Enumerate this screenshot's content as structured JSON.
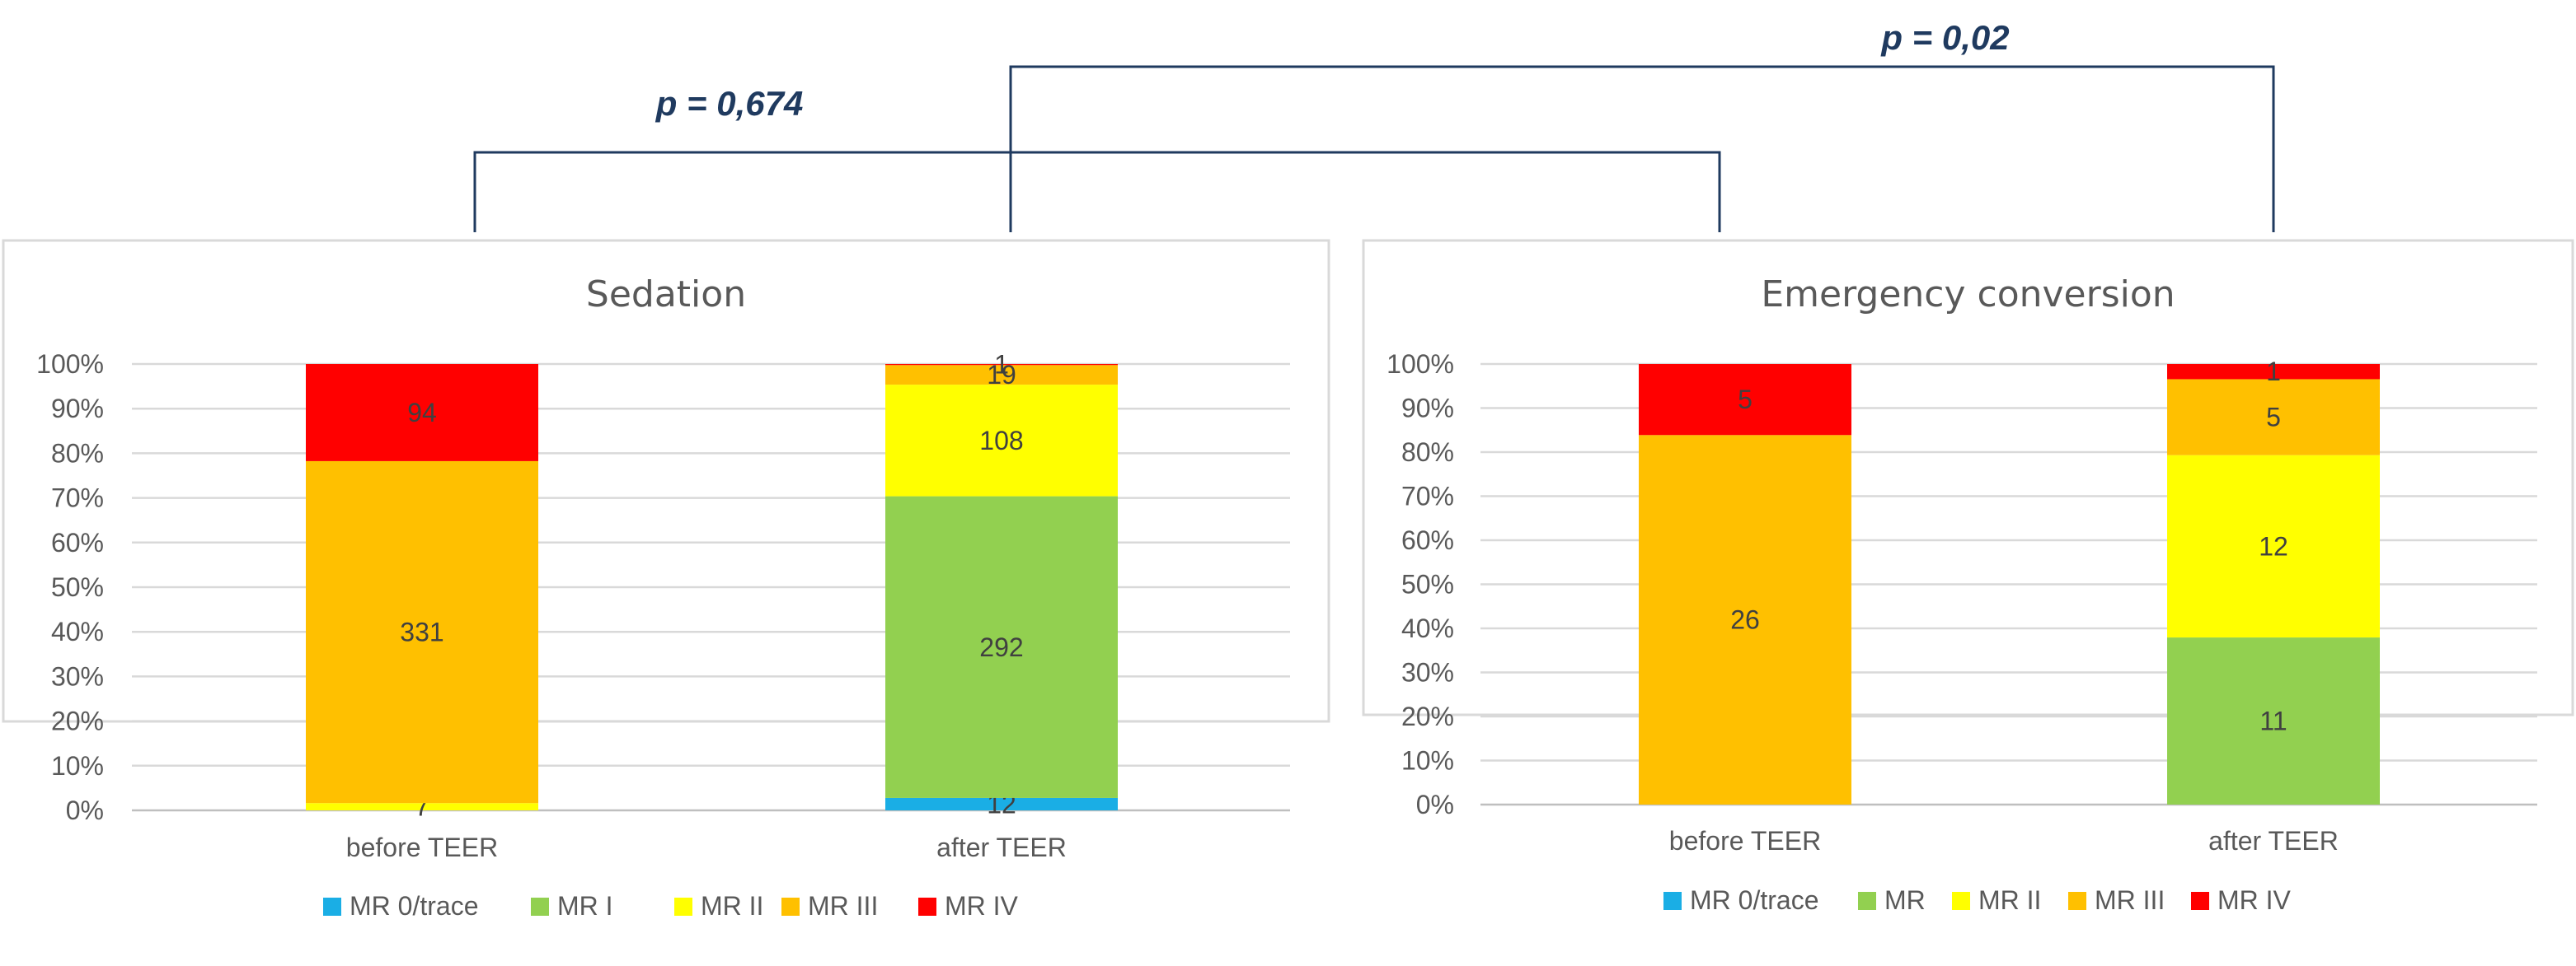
{
  "comparisons": [
    {
      "label": "p = 0,674",
      "from": "Sedation/before TEER",
      "to": "Emergency conversion/before TEER"
    },
    {
      "label": "p = 0,02",
      "from": "Sedation/after TEER",
      "to": "Emergency conversion/after TEER"
    }
  ],
  "bracket_color": "#1f3a5f",
  "chart_data": [
    {
      "type": "bar",
      "stacked": "percent",
      "title": "Sedation",
      "categories": [
        "before TEER",
        "after TEER"
      ],
      "y_ticks": [
        "0%",
        "10%",
        "20%",
        "30%",
        "40%",
        "50%",
        "60%",
        "70%",
        "80%",
        "90%",
        "100%"
      ],
      "ylim": [
        0,
        100
      ],
      "grid": true,
      "legend_position": "bottom",
      "series": [
        {
          "name": "MR 0/trace",
          "color": "#1aaee5",
          "values": [
            0,
            12
          ]
        },
        {
          "name": "MR I",
          "color": "#92d050",
          "values": [
            0,
            292
          ]
        },
        {
          "name": "MR II",
          "color": "#ffff00",
          "values": [
            7,
            108
          ]
        },
        {
          "name": "MR III",
          "color": "#ffc000",
          "values": [
            331,
            19
          ]
        },
        {
          "name": "MR IV",
          "color": "#ff0000",
          "values": [
            94,
            1
          ]
        }
      ]
    },
    {
      "type": "bar",
      "stacked": "percent",
      "title": "Emergency conversion",
      "categories": [
        "before TEER",
        "after TEER"
      ],
      "y_ticks": [
        "0%",
        "10%",
        "20%",
        "30%",
        "40%",
        "50%",
        "60%",
        "70%",
        "80%",
        "90%",
        "100%"
      ],
      "ylim": [
        0,
        100
      ],
      "grid": true,
      "legend_position": "bottom",
      "series": [
        {
          "name": "MR 0/trace",
          "color": "#1aaee5",
          "values": [
            0,
            0
          ]
        },
        {
          "name": "MR",
          "color": "#92d050",
          "values": [
            0,
            11
          ]
        },
        {
          "name": "MR II",
          "color": "#ffff00",
          "values": [
            0,
            12
          ]
        },
        {
          "name": "MR III",
          "color": "#ffc000",
          "values": [
            26,
            5
          ]
        },
        {
          "name": "MR IV",
          "color": "#ff0000",
          "values": [
            5,
            1
          ]
        }
      ]
    }
  ]
}
